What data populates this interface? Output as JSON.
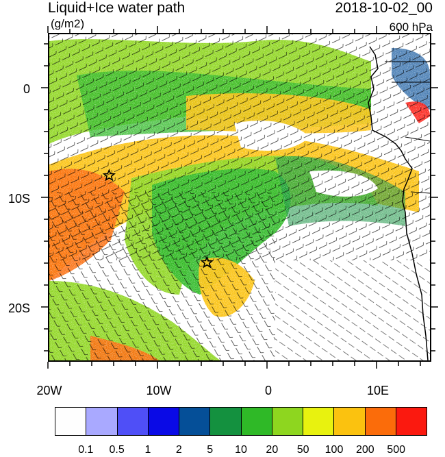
{
  "header": {
    "title": "Liquid+Ice water path",
    "units": "(g/m2)",
    "date": "2018-10-02_00",
    "level": "600 hPa"
  },
  "axes": {
    "lat_labels": [
      "0",
      "10S",
      "20S"
    ],
    "lon_labels": [
      "20W",
      "10W",
      "0",
      "10E"
    ]
  },
  "markers": [
    {
      "name": "star-west",
      "lon": -14.5,
      "lat": -8.0
    },
    {
      "name": "star-central",
      "lon": -5.5,
      "lat": -16.0
    }
  ],
  "colorbar": {
    "colors": [
      "#fefefe",
      "#a9a9ff",
      "#4f4ff7",
      "#0a0ae6",
      "#054f98",
      "#14913f",
      "#2fb927",
      "#8ed61f",
      "#e8f20f",
      "#fbc20f",
      "#fb6c0a",
      "#fb190f"
    ],
    "labels": [
      "0.1",
      "0.5",
      "1",
      "2",
      "5",
      "10",
      "20",
      "50",
      "100",
      "200",
      "500"
    ]
  },
  "map_extent": {
    "lon_min": -20,
    "lon_max": 15,
    "lat_min": -25,
    "lat_max": 5
  }
}
